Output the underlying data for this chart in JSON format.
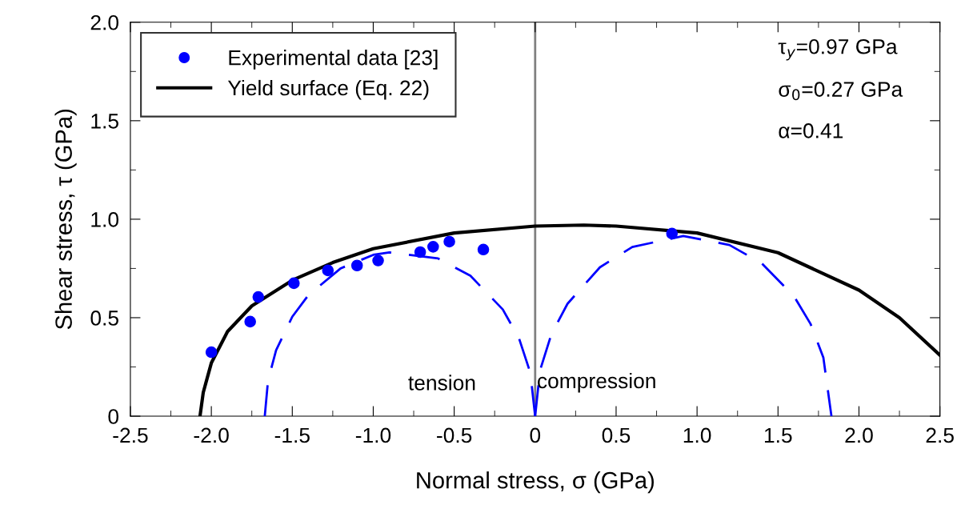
{
  "chart_data": {
    "type": "scatter",
    "xlabel": "Normal stress, σ (GPa)",
    "ylabel": "Shear stress, τ (GPa)",
    "xlim": [
      -2.5,
      2.5
    ],
    "xticks": [
      -2.5,
      {
        "value": -2,
        "label": "-2.0"
      },
      -1.5,
      {
        "value": -1,
        "label": "-1.0"
      },
      -0.5,
      0,
      0.5,
      {
        "value": 1,
        "label": "1.0"
      },
      1.5,
      {
        "value": 2,
        "label": "2.0"
      },
      2.5
    ],
    "ylim": [
      0,
      2.0
    ],
    "yticks": [
      0,
      0.5,
      {
        "value": 1,
        "label": "1.0"
      },
      1.5,
      {
        "value": 2,
        "label": "2.0"
      }
    ],
    "grid": false,
    "legend": "top left",
    "series": [
      {
        "name": "Experimental data [23]",
        "marker": "circle",
        "color": "#0000ff",
        "x": [
          -2.0,
          -1.76,
          -1.71,
          -1.49,
          -1.28,
          -1.1,
          -0.97,
          -0.71,
          -0.63,
          -0.53,
          -0.32,
          0.845
        ],
        "values": [
          0.325,
          0.48,
          0.605,
          0.675,
          0.74,
          0.765,
          0.79,
          0.833,
          0.86,
          0.886,
          0.846,
          0.927
        ]
      },
      {
        "name": "Yield surface (Eq. 22)",
        "type": "line",
        "line_style": "solid",
        "color": "#000000",
        "x": [
          -2.07,
          -2.05,
          -2.0,
          -1.9,
          -1.75,
          -1.5,
          -1.25,
          -1.0,
          -0.5,
          0,
          0.3,
          0.5,
          1.0,
          1.5,
          2.0,
          2.25,
          2.5
        ],
        "values": [
          0,
          0.12,
          0.27,
          0.43,
          0.56,
          0.69,
          0.78,
          0.85,
          0.93,
          0.965,
          0.97,
          0.965,
          0.93,
          0.83,
          0.64,
          0.5,
          0.31
        ]
      },
      {
        "type": "line",
        "line_style": "dashed",
        "color": "#0000ff",
        "x": [
          -1.67,
          -1.65,
          -1.6,
          -1.5,
          -1.4,
          -1.2,
          -1.0,
          -0.9,
          -0.6,
          -0.4,
          -0.2,
          -0.1,
          -0.03,
          0
        ],
        "values": [
          0,
          0.18,
          0.335,
          0.505,
          0.615,
          0.751,
          0.819,
          0.832,
          0.801,
          0.713,
          0.542,
          0.396,
          0.221,
          0
        ]
      },
      {
        "type": "line",
        "line_style": "dashed",
        "color": "#0000ff",
        "x": [
          0,
          0.03,
          0.1,
          0.2,
          0.4,
          0.6,
          0.915,
          1.2,
          1.4,
          1.6,
          1.7,
          1.78,
          1.83
        ],
        "values": [
          0,
          0.232,
          0.416,
          0.571,
          0.756,
          0.859,
          0.915,
          0.869,
          0.776,
          0.607,
          0.47,
          0.298,
          0
        ]
      }
    ],
    "ref_lines": [
      {
        "axis": "x",
        "value": 0,
        "color": "#808080",
        "line_style": "solid"
      }
    ],
    "annotations": [
      "τ$_{y}$=0.97 GPa",
      "σ$_{0}$=0.27 GPa",
      "α=0.41",
      "tension",
      "compression"
    ]
  }
}
